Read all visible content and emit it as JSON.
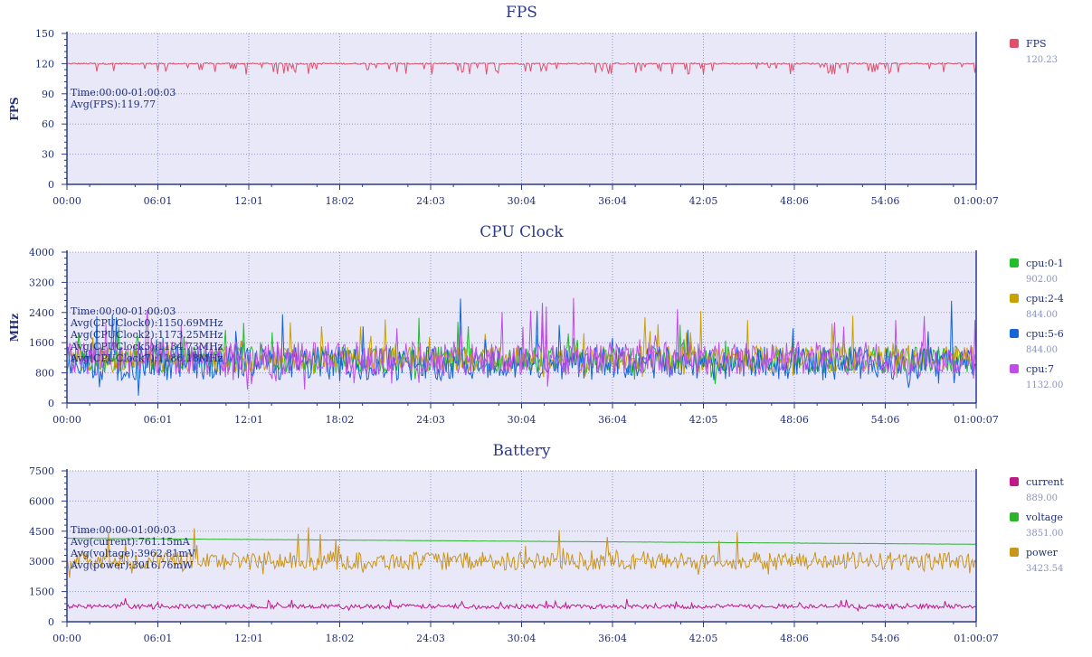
{
  "chart_data": [
    {
      "type": "line",
      "title": "FPS",
      "ylabel": "FPS",
      "ylim": [
        0,
        150
      ],
      "yticks": [
        0,
        30,
        60,
        90,
        120,
        150
      ],
      "xticks": [
        "00:00",
        "06:01",
        "12:01",
        "18:02",
        "24:03",
        "30:04",
        "36:04",
        "42:05",
        "48:06",
        "54:06",
        "01:00:07"
      ],
      "xrange_seconds": [
        0,
        3607
      ],
      "grid": true,
      "legend_position": "right",
      "annotation": [
        "Time:00:00-01:00:03",
        "Avg(FPS):119.77"
      ],
      "series": [
        {
          "name": "FPS",
          "legend_value": "120.23",
          "color": "#e0506a",
          "base": 120,
          "noise": 1.5,
          "dips": true
        }
      ]
    },
    {
      "type": "line",
      "title": "CPU Clock",
      "ylabel": "MHz",
      "ylim": [
        0,
        4000
      ],
      "yticks": [
        0,
        800,
        1600,
        2400,
        3200,
        4000
      ],
      "xticks": [
        "00:00",
        "06:01",
        "12:01",
        "18:02",
        "24:03",
        "30:04",
        "36:04",
        "42:05",
        "48:06",
        "54:06",
        "01:00:07"
      ],
      "xrange_seconds": [
        0,
        3607
      ],
      "grid": true,
      "legend_position": "right",
      "annotation": [
        "Time:00:00-01:00:03",
        "Avg(CPUClock0):1150.69MHz",
        "Avg(CPUClock2):1173.25MHz",
        "Avg(CPUClock5):1134.73MHz",
        "Avg(CPUClock7):1186.18MHz"
      ],
      "series": [
        {
          "name": "cpu:0-1",
          "legend_value": "902.00",
          "color": "#1fbf2a",
          "base": 1150,
          "noise": 350
        },
        {
          "name": "cpu:2-4",
          "legend_value": "844.00",
          "color": "#c9a200",
          "base": 1170,
          "noise": 350
        },
        {
          "name": "cpu:5-6",
          "legend_value": "844.00",
          "color": "#1565d8",
          "base": 1050,
          "noise": 450
        },
        {
          "name": "cpu:7",
          "legend_value": "1132.00",
          "color": "#c14de8",
          "base": 1190,
          "noise": 450
        }
      ]
    },
    {
      "type": "line",
      "title": "Battery",
      "ylabel": "",
      "ylim": [
        0,
        7500
      ],
      "yticks": [
        0,
        1500,
        3000,
        4500,
        6000,
        7500
      ],
      "xticks": [
        "00:00",
        "06:01",
        "12:01",
        "18:02",
        "24:03",
        "30:04",
        "36:04",
        "42:05",
        "48:06",
        "54:06",
        "01:00:07"
      ],
      "xrange_seconds": [
        0,
        3607
      ],
      "grid": true,
      "legend_position": "right",
      "annotation": [
        "Time:00:00-01:00:03",
        "Avg(current):761.15mA",
        "Avg(voltage):3962.81mV",
        "Avg(power):3016.76mW"
      ],
      "series": [
        {
          "name": "current",
          "legend_value": "889.00",
          "color": "#c0188a",
          "base": 760,
          "noise": 110
        },
        {
          "name": "voltage",
          "legend_value": "3851.00",
          "color": "#2ab52a",
          "start": 4150,
          "end": 3851
        },
        {
          "name": "power",
          "legend_value": "3423.54",
          "color": "#c9951a",
          "base": 3016,
          "noise": 450
        }
      ]
    }
  ]
}
